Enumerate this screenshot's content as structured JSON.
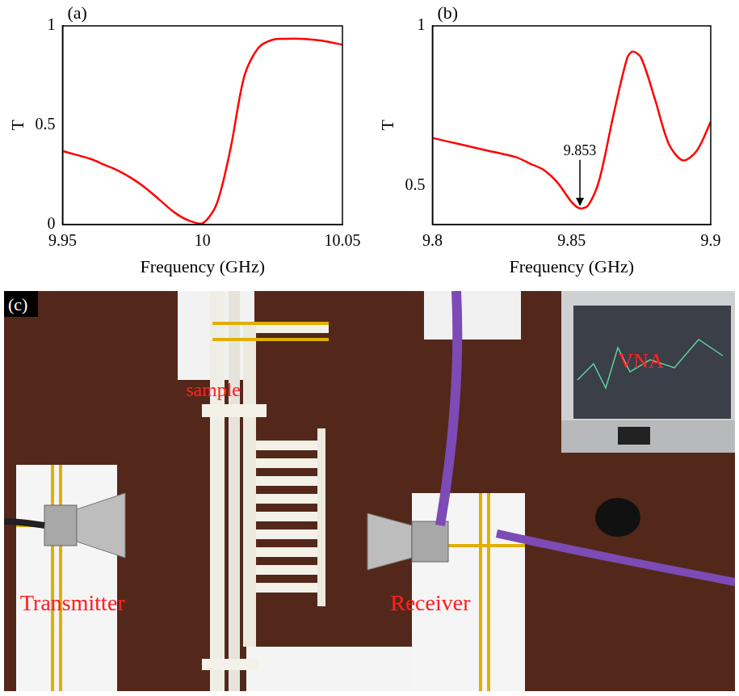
{
  "chart_data": [
    {
      "type": "line",
      "panel": "(a)",
      "x": [
        9.95,
        9.955,
        9.96,
        9.965,
        9.97,
        9.975,
        9.98,
        9.985,
        9.99,
        9.995,
        10.0,
        10.005,
        10.01,
        10.015,
        10.02,
        10.025,
        10.03,
        10.035,
        10.04,
        10.045,
        10.05
      ],
      "values": [
        0.37,
        0.35,
        0.33,
        0.3,
        0.27,
        0.23,
        0.18,
        0.12,
        0.06,
        0.02,
        0.005,
        0.1,
        0.38,
        0.75,
        0.89,
        0.93,
        0.935,
        0.935,
        0.93,
        0.92,
        0.905
      ],
      "color": "#ff0000",
      "line_style": "solid",
      "xlabel": "Frequency (GHz)",
      "ylabel": "T",
      "xlim": [
        9.95,
        10.05
      ],
      "xticks": [
        9.95,
        10,
        10.05
      ],
      "ylim": [
        0,
        1
      ],
      "yticks": [
        0,
        0.5,
        1
      ],
      "grid": false
    },
    {
      "type": "line",
      "panel": "(b)",
      "x": [
        9.8,
        9.81,
        9.82,
        9.83,
        9.835,
        9.84,
        9.845,
        9.85,
        9.853,
        9.856,
        9.86,
        9.865,
        9.87,
        9.872,
        9.875,
        9.88,
        9.885,
        9.89,
        9.895,
        9.9
      ],
      "values": [
        0.65,
        0.63,
        0.61,
        0.59,
        0.57,
        0.55,
        0.51,
        0.45,
        0.43,
        0.44,
        0.52,
        0.72,
        0.9,
        0.92,
        0.9,
        0.77,
        0.63,
        0.58,
        0.61,
        0.7
      ],
      "color": "#ff0000",
      "line_style": "solid",
      "xlabel": "Frequency (GHz)",
      "ylabel": "T",
      "xlim": [
        9.8,
        9.9
      ],
      "xticks": [
        9.8,
        9.85,
        9.9
      ],
      "ylim": [
        0.38,
        1
      ],
      "yticks": [
        0.5,
        1
      ],
      "grid": false,
      "annotations": [
        {
          "text": "9.853",
          "x": 9.853,
          "y": 0.43
        }
      ]
    }
  ],
  "photo": {
    "panel": "(c)",
    "sample": "sample",
    "transmitter": "Transmitter",
    "receiver": "Receiver",
    "instrument": "VNA"
  }
}
